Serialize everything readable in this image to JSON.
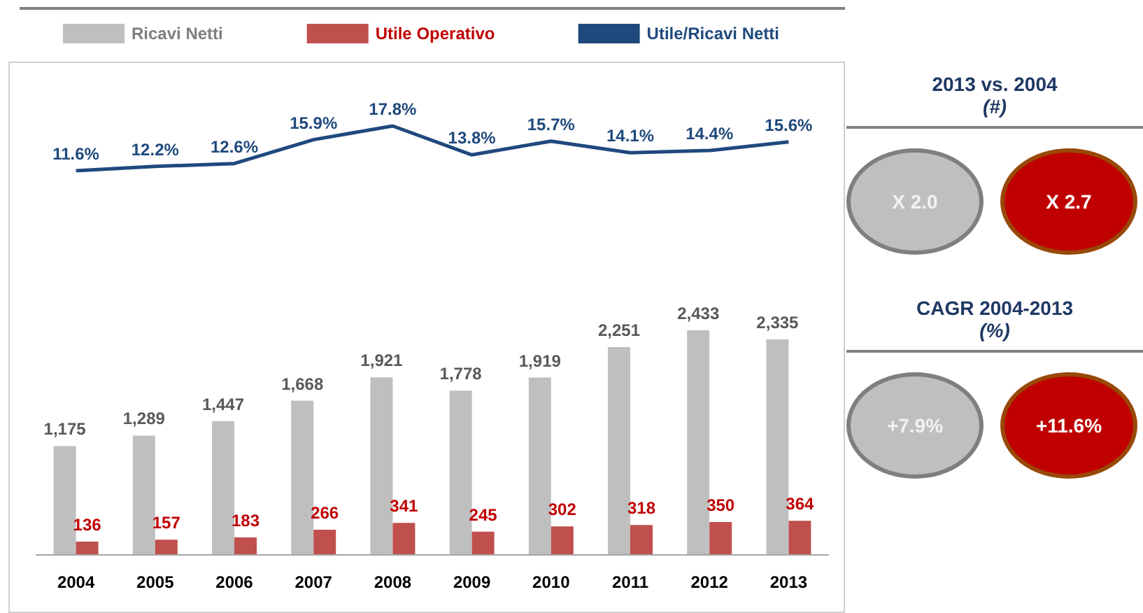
{
  "chart_data": [
    {
      "type": "bar",
      "categories": [
        "2004",
        "2005",
        "2006",
        "2007",
        "2008",
        "2009",
        "2010",
        "2011",
        "2012",
        "2013"
      ],
      "series": [
        {
          "name": "Ricavi Netti",
          "color": "#bfbfbf",
          "values": [
            1175,
            1289,
            1447,
            1668,
            1921,
            1778,
            1919,
            2251,
            2433,
            2335
          ],
          "value_labels": [
            "1,175",
            "1,289",
            "1,447",
            "1,668",
            "1,921",
            "1,778",
            "1,919",
            "2,251",
            "2,433",
            "2,335"
          ]
        },
        {
          "name": "Utile Operativo",
          "color": "#c0504d",
          "values": [
            136,
            157,
            183,
            266,
            341,
            245,
            302,
            318,
            350,
            364
          ],
          "value_labels": [
            "136",
            "157",
            "183",
            "266",
            "341",
            "245",
            "302",
            "318",
            "350",
            "364"
          ]
        }
      ],
      "legend": "top",
      "grid": false,
      "tick_labels": "x"
    },
    {
      "type": "line",
      "categories": [
        "2004",
        "2005",
        "2006",
        "2007",
        "2008",
        "2009",
        "2010",
        "2011",
        "2012",
        "2013"
      ],
      "series": [
        {
          "name": "Utile/Ricavi Netti",
          "color": "#1f497d",
          "values": [
            11.6,
            12.2,
            12.6,
            15.9,
            17.8,
            13.8,
            15.7,
            14.1,
            14.4,
            15.6
          ],
          "value_labels": [
            "11.6%",
            "12.2%",
            "12.6%",
            "15.9%",
            "17.8%",
            "13.8%",
            "15.7%",
            "14.1%",
            "14.4%",
            "15.6%"
          ]
        }
      ],
      "marker": "none",
      "legend": "top",
      "grid": false,
      "tick_labels": false
    },
    {
      "type": "other",
      "annotations": [
        "2013 vs. 2004",
        "(#)",
        "X 2.0",
        "X 2.7",
        "CAGR 2004-2013",
        "(%)",
        "+7.9%",
        "+11.6%"
      ]
    }
  ]
}
